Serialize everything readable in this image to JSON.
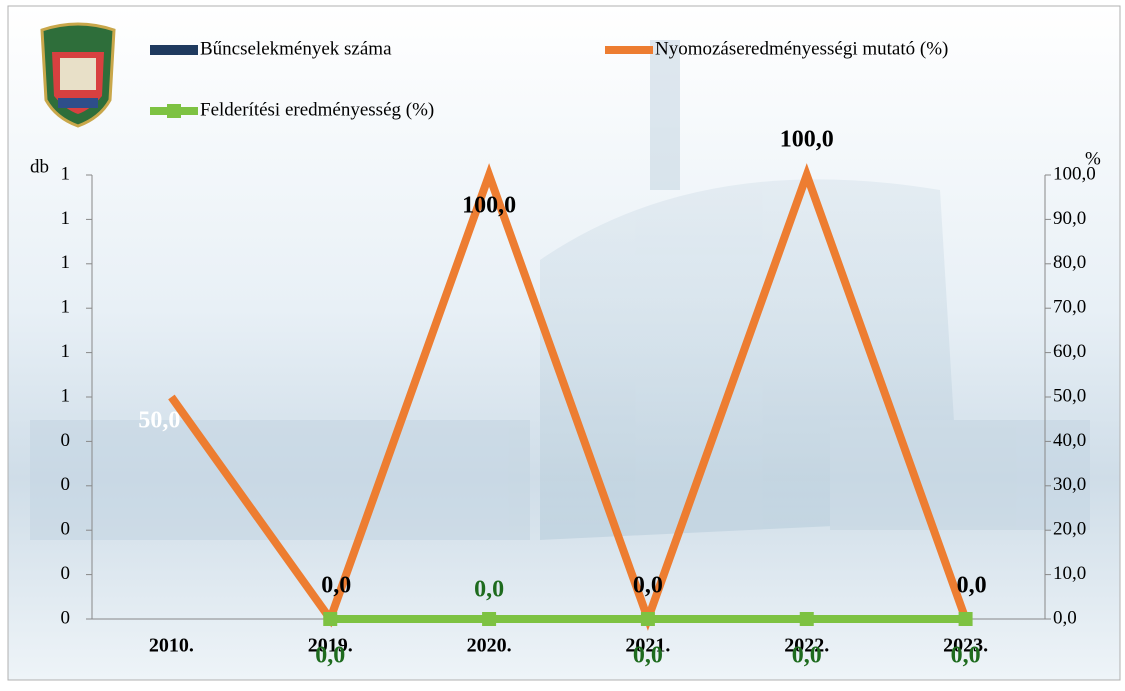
{
  "chart_data": {
    "type": "combo",
    "y_label": "db",
    "y2_label": "%",
    "categories": [
      "2010.",
      "2019.",
      "2020.",
      "2021.",
      "2022.",
      "2023."
    ],
    "ylim": [
      0,
      1
    ],
    "yticks": [
      0,
      {
        "value": 0.1,
        "label": "0"
      },
      {
        "value": 0.2,
        "label": "0"
      },
      {
        "value": 0.3,
        "label": "0"
      },
      {
        "value": 0.4,
        "label": "0"
      },
      {
        "value": 0.5,
        "label": "1"
      },
      {
        "value": 0.6,
        "label": "1"
      },
      {
        "value": 0.7,
        "label": "1"
      },
      {
        "value": 0.8,
        "label": "1"
      },
      {
        "value": 0.9,
        "label": "1"
      },
      1
    ],
    "y2lim": [
      0,
      100
    ],
    "y2ticks": [
      {
        "value": 0,
        "label": "0,0"
      },
      {
        "value": 10,
        "label": "10,0"
      },
      {
        "value": 20,
        "label": "20,0"
      },
      {
        "value": 30,
        "label": "30,0"
      },
      {
        "value": 40,
        "label": "40,0"
      },
      {
        "value": 50,
        "label": "50,0"
      },
      {
        "value": 60,
        "label": "60,0"
      },
      {
        "value": 70,
        "label": "70,0"
      },
      {
        "value": 80,
        "label": "80,0"
      },
      {
        "value": 90,
        "label": "90,0"
      },
      {
        "value": 100,
        "label": "100,0"
      }
    ],
    "series": [
      {
        "name": "Bűncselekmények száma",
        "type": "bar",
        "color": "#1f3a5f",
        "values": [
          0,
          0,
          0,
          0,
          0,
          0
        ]
      },
      {
        "name": "Nyomozáseredményességi mutató (%)",
        "type": "line",
        "axis": "y2",
        "color": "#ed7d31",
        "values": [
          50,
          0,
          100,
          0,
          100,
          0
        ],
        "value_labels": [
          "50,0",
          "0,0",
          "100,0",
          "0,0",
          "100,0",
          "0,0"
        ]
      },
      {
        "name": "Felderítési eredményesség (%)",
        "type": "line",
        "axis": "y2",
        "color": "#7dc242",
        "marker": "square",
        "values": [
          null,
          0,
          0,
          0,
          0,
          0
        ],
        "value_labels": [
          null,
          "0,0",
          "0,0",
          "0,0",
          "0,0",
          "0,0"
        ]
      }
    ]
  }
}
